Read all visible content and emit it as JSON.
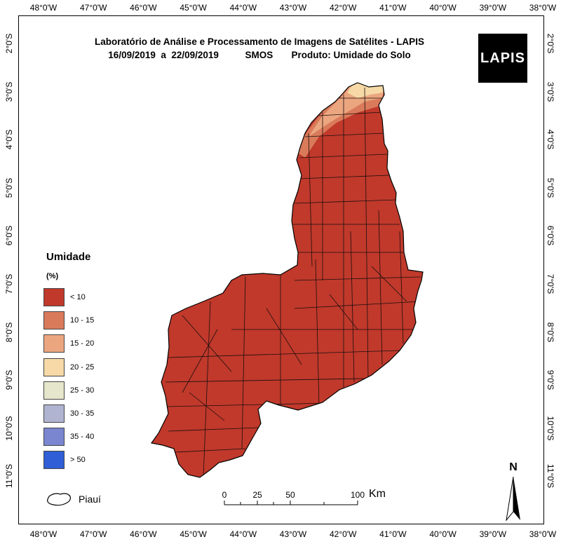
{
  "title": {
    "line1": "Laboratório de Análise e Processamento de Imagens de Satélites - LAPIS",
    "line2": "16/09/2019  a  22/09/2019          SMOS       Produto: Umidade do Solo"
  },
  "logo_text": "LAPIS",
  "axes": {
    "longitude_labels": [
      "48°0'W",
      "47°0'W",
      "46°0'W",
      "45°0'W",
      "44°0'W",
      "43°0'W",
      "42°0'W",
      "41°0'W",
      "40°0'W",
      "39°0'W",
      "38°0'W"
    ],
    "latitude_labels": [
      "2°0'S",
      "3°0'S",
      "4°0'S",
      "5°0'S",
      "6°0'S",
      "7°0'S",
      "8°0'S",
      "9°0'S",
      "10°0'S",
      "11°0'S"
    ]
  },
  "legend": {
    "title": "Umidade",
    "unit": "(%)",
    "items": [
      {
        "label": "< 10",
        "color": "#c0392b"
      },
      {
        "label": "10 - 15",
        "color": "#d97a5a"
      },
      {
        "label": "15 - 20",
        "color": "#eba67f"
      },
      {
        "label": "20 - 25",
        "color": "#f6d9a6"
      },
      {
        "label": "25 - 30",
        "color": "#e6e6cc"
      },
      {
        "label": "30 - 35",
        "color": "#b0b4d0"
      },
      {
        "label": "35 - 40",
        "color": "#7a86cf"
      },
      {
        "label": "> 50",
        "color": "#2f5ed6"
      }
    ],
    "state_label": "Piauí"
  },
  "scale_bar": {
    "ticks": [
      "0",
      "25",
      "50",
      "100"
    ],
    "unit": "Km"
  },
  "north_label": "N",
  "map_colors": {
    "dominant": "#c0392b",
    "north_coast_1": "#d97a5a",
    "north_coast_2": "#eba67f",
    "north_coast_3": "#f6d9a6"
  }
}
